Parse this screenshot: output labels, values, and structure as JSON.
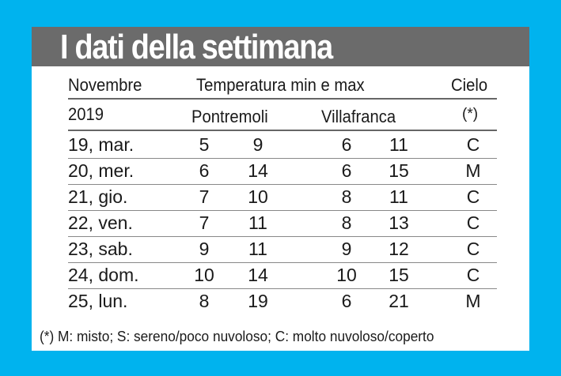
{
  "title": "I dati della settimana",
  "header": {
    "period_label": "Novembre",
    "year_label": "2019",
    "temperature_label": "Temperatura min e max",
    "location_1": "Pontremoli",
    "location_2": "Villafranca",
    "sky_label": "Cielo",
    "sky_note_marker": "(*)"
  },
  "rows": [
    {
      "day": "19, mar.",
      "p_min": "5",
      "p_max": "9",
      "v_min": "6",
      "v_max": "11",
      "sky": "C"
    },
    {
      "day": "20, mer.",
      "p_min": "6",
      "p_max": "14",
      "v_min": "6",
      "v_max": "15",
      "sky": "M"
    },
    {
      "day": "21, gio.",
      "p_min": "7",
      "p_max": "10",
      "v_min": "8",
      "v_max": "11",
      "sky": "C"
    },
    {
      "day": "22, ven.",
      "p_min": "7",
      "p_max": "11",
      "v_min": "8",
      "v_max": "13",
      "sky": "C"
    },
    {
      "day": "23, sab.",
      "p_min": "9",
      "p_max": "11",
      "v_min": "9",
      "v_max": "12",
      "sky": "C"
    },
    {
      "day": "24, dom.",
      "p_min": "10",
      "p_max": "14",
      "v_min": "10",
      "v_max": "15",
      "sky": "C"
    },
    {
      "day": "25, lun.",
      "p_min": "8",
      "p_max": "19",
      "v_min": "6",
      "v_max": "21",
      "sky": "M"
    }
  ],
  "footnote": "(*) M: misto; S: sereno/poco nuvoloso; C: molto nuvoloso/coperto",
  "colors": {
    "background": "#00B3EE",
    "title_bar": "#6b6b6b",
    "card": "#ffffff"
  }
}
